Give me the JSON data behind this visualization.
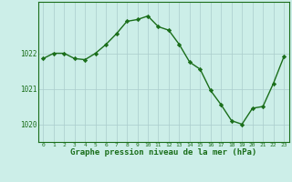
{
  "x": [
    0,
    1,
    2,
    3,
    4,
    5,
    6,
    7,
    8,
    9,
    10,
    11,
    12,
    13,
    14,
    15,
    16,
    17,
    18,
    19,
    20,
    21,
    22,
    23
  ],
  "y": [
    1021.85,
    1022.0,
    1022.0,
    1021.85,
    1021.82,
    1022.0,
    1022.25,
    1022.55,
    1022.9,
    1022.95,
    1023.05,
    1022.75,
    1022.65,
    1022.25,
    1021.75,
    1021.55,
    1020.95,
    1020.55,
    1020.1,
    1020.0,
    1020.45,
    1020.5,
    1021.15,
    1021.9
  ],
  "line_color": "#1a6e1a",
  "marker": "D",
  "marker_size": 2.2,
  "bg_color": "#cceee8",
  "grid_color": "#aacccc",
  "xlabel": "Graphe pression niveau de la mer (hPa)",
  "xlabel_color": "#1a6e1a",
  "xlabel_fontsize": 6.5,
  "tick_color": "#1a6e1a",
  "yticks": [
    1020,
    1021,
    1022
  ],
  "ylim": [
    1019.5,
    1023.45
  ],
  "xlim": [
    -0.5,
    23.5
  ],
  "xticks": [
    0,
    1,
    2,
    3,
    4,
    5,
    6,
    7,
    8,
    9,
    10,
    11,
    12,
    13,
    14,
    15,
    16,
    17,
    18,
    19,
    20,
    21,
    22,
    23
  ],
  "grid_alpha": 1.0,
  "spine_color": "#1a6e1a",
  "linewidth": 1.0
}
